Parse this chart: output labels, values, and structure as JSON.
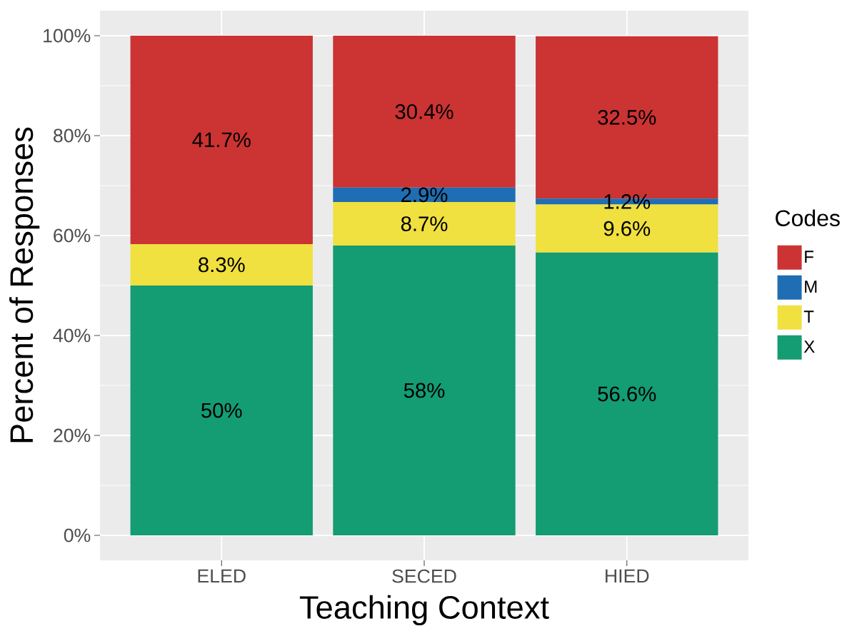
{
  "chart_data": {
    "type": "bar",
    "stacked": true,
    "xlabel": "Teaching Context",
    "ylabel": "Percent of Responses",
    "legend_title": "Codes",
    "legend": "right",
    "grid": true,
    "categories": [
      "ELED",
      "SECED",
      "HIED"
    ],
    "ylim": [
      -5,
      105
    ],
    "yticks": [
      {
        "value": 0,
        "label": "0%"
      },
      {
        "value": 20,
        "label": "20%"
      },
      {
        "value": 40,
        "label": "40%"
      },
      {
        "value": 60,
        "label": "60%"
      },
      {
        "value": 80,
        "label": "80%"
      },
      {
        "value": 100,
        "label": "100%"
      }
    ],
    "series": [
      {
        "name": "X",
        "color": "#149c72",
        "values": [
          50,
          58,
          56.6
        ],
        "value_labels": [
          "50%",
          "58%",
          "56.6%"
        ]
      },
      {
        "name": "T",
        "color": "#f0e040",
        "values": [
          8.3,
          8.7,
          9.6
        ],
        "value_labels": [
          "8.3%",
          "8.7%",
          "9.6%"
        ]
      },
      {
        "name": "M",
        "color": "#1f6eb3",
        "values": [
          0,
          2.9,
          1.2
        ],
        "value_labels": [
          null,
          "2.9%",
          "1.2%"
        ]
      },
      {
        "name": "F",
        "color": "#cc3333",
        "values": [
          41.7,
          30.4,
          32.5
        ],
        "value_labels": [
          "41.7%",
          "30.4%",
          "32.5%"
        ]
      }
    ]
  }
}
